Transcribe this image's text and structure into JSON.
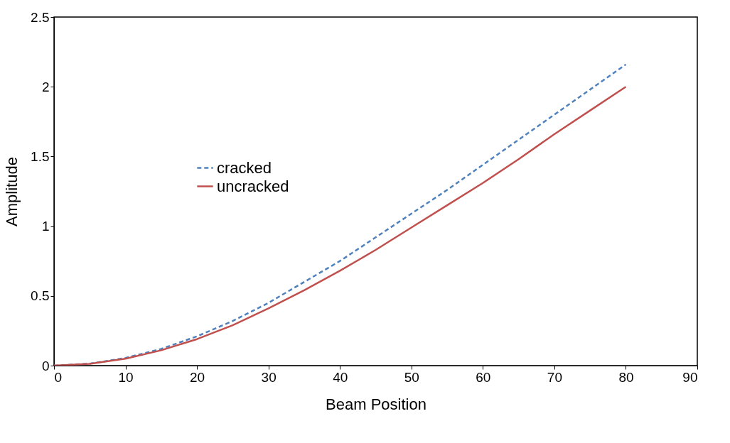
{
  "chart_data": {
    "type": "line",
    "xlabel": "Beam Position",
    "ylabel": "Amplitude",
    "xlim": [
      0,
      90
    ],
    "xticks": [
      0,
      10,
      20,
      30,
      40,
      50,
      60,
      70,
      80,
      90
    ],
    "ylim": [
      0,
      2.5
    ],
    "yticks": [
      0,
      0.5,
      1,
      1.5,
      2,
      2.5
    ],
    "grid": false,
    "legend": "top left",
    "marker": "none",
    "series": [
      {
        "name": "cracked",
        "color": "#4f81bd",
        "line_style": "dashed",
        "x": [
          0,
          5,
          10,
          15,
          20,
          25,
          30,
          35,
          40,
          45,
          50,
          55,
          60,
          65,
          70,
          75,
          80
        ],
        "values": [
          0,
          0.014,
          0.055,
          0.12,
          0.21,
          0.32,
          0.45,
          0.6,
          0.75,
          0.92,
          1.09,
          1.26,
          1.44,
          1.62,
          1.8,
          1.98,
          2.16
        ]
      },
      {
        "name": "uncracked",
        "color": "#c0504d",
        "line_style": "solid",
        "x": [
          0,
          5,
          10,
          15,
          20,
          25,
          30,
          35,
          40,
          45,
          50,
          55,
          60,
          65,
          70,
          75,
          80
        ],
        "values": [
          0,
          0.013,
          0.05,
          0.11,
          0.19,
          0.29,
          0.41,
          0.54,
          0.68,
          0.83,
          0.99,
          1.15,
          1.31,
          1.48,
          1.66,
          1.83,
          2.0
        ]
      }
    ]
  }
}
